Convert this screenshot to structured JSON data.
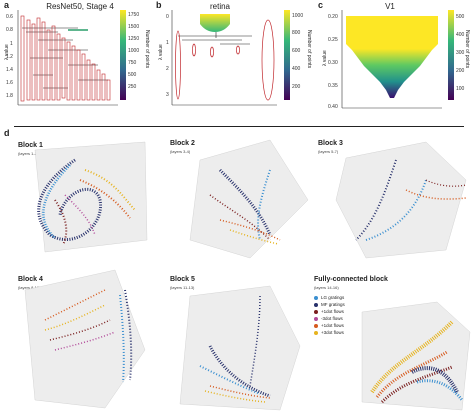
{
  "panels": {
    "a": {
      "label": "a",
      "title": "ResNet50, Stage 4",
      "ylabel": "λ value",
      "yticks": [
        "0.6",
        "0.8",
        "1",
        "1.2",
        "1.4",
        "1.6",
        "1.8"
      ],
      "cb_ticks": [
        "1750",
        "1500",
        "1250",
        "1000",
        "750",
        "500",
        "250"
      ],
      "cb_label": "Number of points"
    },
    "b": {
      "label": "b",
      "title": "retina",
      "ylabel": "λ value",
      "yticks": [
        "0",
        "1",
        "2",
        "3"
      ],
      "cb_ticks": [
        "1000",
        "800",
        "600",
        "400",
        "200"
      ],
      "cb_label": "Number of points"
    },
    "c": {
      "label": "c",
      "title": "V1",
      "ylabel": "λ value",
      "yticks": [
        "0.20",
        "0.25",
        "0.30",
        "0.35",
        "0.40"
      ],
      "cb_ticks": [
        "500",
        "400",
        "300",
        "200",
        "100"
      ],
      "cb_label": "Number of points"
    },
    "d": {
      "label": "d"
    }
  },
  "blocks": [
    {
      "title": "Block 1",
      "sub": "(layers 1-2)"
    },
    {
      "title": "Block 2",
      "sub": "(layers 3-4)"
    },
    {
      "title": "Block 3",
      "sub": "(layers 5-7)"
    },
    {
      "title": "Block 4",
      "sub": "(layers 8-10)"
    },
    {
      "title": "Block 5",
      "sub": "(layers 11-13)"
    },
    {
      "title": "Fully-connected block",
      "sub": "(layers 14-16)"
    }
  ],
  "legend": [
    {
      "label": "LG gratings",
      "color": "#3a8fd0"
    },
    {
      "label": "MF gratings",
      "color": "#27306b"
    },
    {
      "label": "+1dot flows",
      "color": "#7a1f1f"
    },
    {
      "label": "-3dot flows",
      "color": "#b24a9a"
    },
    {
      "label": "+1dot flows",
      "color": "#d65a1e"
    },
    {
      "label": "+3dot flows",
      "color": "#e6b31e"
    }
  ]
}
